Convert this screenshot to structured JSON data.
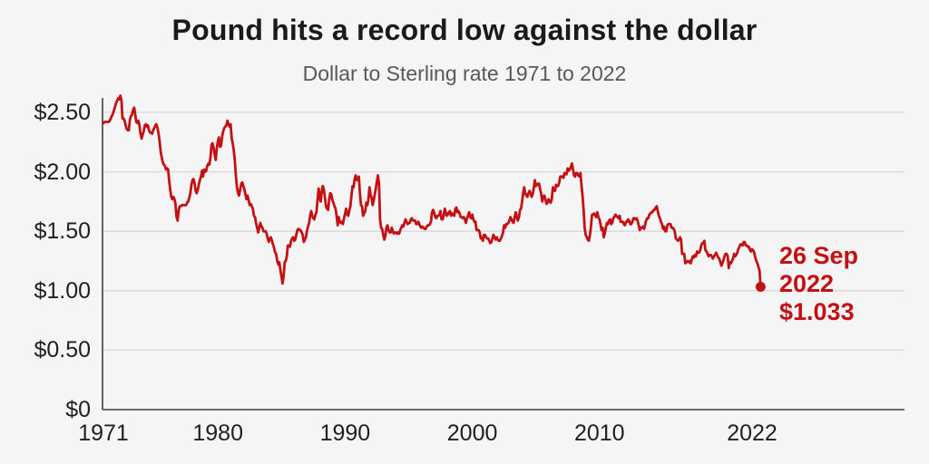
{
  "title": "Pound hits a record low against the dollar",
  "subtitle": "Dollar to Sterling rate 1971 to 2022",
  "annotation": {
    "line1": "26 Sep",
    "line2": "2022",
    "line3": "$1.033"
  },
  "colors": {
    "line": "#c31114",
    "annotation_text": "#c31114",
    "endpoint_dot": "#c31114",
    "grid": "#d9d9da",
    "axis": "#3f3f3f",
    "background": "#f5f5f6",
    "title_text": "#1a1a1a",
    "subtitle_text": "#585858",
    "tick_text": "#1f1f1f"
  },
  "chart_data": {
    "type": "line",
    "title": "Pound hits a record low against the dollar",
    "subtitle": "Dollar to Sterling rate 1971 to 2022",
    "xlabel": "",
    "ylabel": "",
    "grid": "horizontal",
    "legend": "none",
    "x_start_year": 1971,
    "points_per_year": 12,
    "x_tick_values": [
      1971,
      1980,
      1990,
      2000,
      2010,
      2022
    ],
    "x_tick_labels": [
      "1971",
      "1980",
      "1990",
      "2000",
      "2010",
      "2022"
    ],
    "y_tick_values": [
      2.5,
      2.0,
      1.5,
      1.0,
      0.5,
      0
    ],
    "y_tick_labels": [
      "$2.50",
      "$2.00",
      "$1.50",
      "$1.00",
      "$0.50",
      "$0"
    ],
    "ylim": [
      0,
      2.72
    ],
    "end_point": {
      "date": "26 Sep 2022",
      "value": 1.033
    },
    "series": [
      {
        "name": "Dollar to Sterling rate",
        "values": [
          2.41,
          2.42,
          2.42,
          2.42,
          2.42,
          2.42,
          2.43,
          2.45,
          2.47,
          2.49,
          2.52,
          2.55,
          2.58,
          2.6,
          2.62,
          2.61,
          2.64,
          2.6,
          2.45,
          2.45,
          2.43,
          2.39,
          2.36,
          2.35,
          2.35,
          2.44,
          2.47,
          2.48,
          2.52,
          2.54,
          2.48,
          2.42,
          2.41,
          2.43,
          2.39,
          2.32,
          2.28,
          2.31,
          2.34,
          2.39,
          2.4,
          2.38,
          2.39,
          2.35,
          2.33,
          2.33,
          2.32,
          2.35,
          2.37,
          2.39,
          2.4,
          2.37,
          2.32,
          2.26,
          2.17,
          2.12,
          2.08,
          2.06,
          2.05,
          2.02,
          2.03,
          2.02,
          1.93,
          1.85,
          1.79,
          1.77,
          1.79,
          1.77,
          1.73,
          1.62,
          1.59,
          1.68,
          1.71,
          1.71,
          1.72,
          1.72,
          1.72,
          1.72,
          1.72,
          1.74,
          1.75,
          1.78,
          1.82,
          1.89,
          1.93,
          1.94,
          1.9,
          1.84,
          1.82,
          1.85,
          1.89,
          1.93,
          1.96,
          2.01,
          1.96,
          2.02,
          2.0,
          2.01,
          2.05,
          2.07,
          2.06,
          2.12,
          2.23,
          2.24,
          2.2,
          2.14,
          2.1,
          2.2,
          2.26,
          2.29,
          2.21,
          2.22,
          2.3,
          2.34,
          2.37,
          2.38,
          2.39,
          2.43,
          2.4,
          2.38,
          2.4,
          2.28,
          2.24,
          2.18,
          2.09,
          1.97,
          1.87,
          1.82,
          1.8,
          1.85,
          1.9,
          1.91,
          1.88,
          1.85,
          1.81,
          1.77,
          1.8,
          1.76,
          1.72,
          1.73,
          1.71,
          1.69,
          1.63,
          1.62,
          1.57,
          1.53,
          1.49,
          1.53,
          1.57,
          1.54,
          1.53,
          1.5,
          1.5,
          1.5,
          1.48,
          1.44,
          1.41,
          1.44,
          1.45,
          1.42,
          1.39,
          1.36,
          1.32,
          1.31,
          1.25,
          1.22,
          1.24,
          1.17,
          1.12,
          1.06,
          1.12,
          1.24,
          1.25,
          1.29,
          1.38,
          1.38,
          1.37,
          1.42,
          1.44,
          1.45,
          1.42,
          1.43,
          1.47,
          1.51,
          1.52,
          1.51,
          1.51,
          1.49,
          1.47,
          1.41,
          1.43,
          1.45,
          1.5,
          1.54,
          1.57,
          1.63,
          1.67,
          1.63,
          1.61,
          1.6,
          1.64,
          1.66,
          1.76,
          1.86,
          1.79,
          1.75,
          1.84,
          1.88,
          1.85,
          1.78,
          1.71,
          1.69,
          1.68,
          1.77,
          1.82,
          1.81,
          1.76,
          1.74,
          1.71,
          1.69,
          1.63,
          1.55,
          1.62,
          1.58,
          1.57,
          1.58,
          1.56,
          1.61,
          1.65,
          1.69,
          1.64,
          1.63,
          1.68,
          1.71,
          1.8,
          1.88,
          1.87,
          1.94,
          1.97,
          1.93,
          1.93,
          1.96,
          1.82,
          1.72,
          1.71,
          1.63,
          1.65,
          1.67,
          1.74,
          1.72,
          1.77,
          1.87,
          1.81,
          1.78,
          1.72,
          1.76,
          1.81,
          1.86,
          1.92,
          1.97,
          1.9,
          1.6,
          1.53,
          1.52,
          1.47,
          1.43,
          1.46,
          1.53,
          1.55,
          1.51,
          1.49,
          1.49,
          1.53,
          1.5,
          1.48,
          1.49,
          1.49,
          1.48,
          1.49,
          1.48,
          1.51,
          1.53,
          1.55,
          1.54,
          1.57,
          1.6,
          1.58,
          1.56,
          1.57,
          1.57,
          1.6,
          1.61,
          1.59,
          1.59,
          1.59,
          1.56,
          1.56,
          1.58,
          1.56,
          1.54,
          1.53,
          1.54,
          1.53,
          1.52,
          1.52,
          1.54,
          1.55,
          1.55,
          1.56,
          1.58,
          1.66,
          1.68,
          1.66,
          1.62,
          1.61,
          1.63,
          1.63,
          1.64,
          1.67,
          1.6,
          1.6,
          1.63,
          1.69,
          1.66,
          1.63,
          1.64,
          1.66,
          1.67,
          1.63,
          1.65,
          1.64,
          1.63,
          1.69,
          1.7,
          1.66,
          1.67,
          1.65,
          1.62,
          1.62,
          1.61,
          1.62,
          1.6,
          1.57,
          1.61,
          1.63,
          1.66,
          1.62,
          1.61,
          1.64,
          1.6,
          1.58,
          1.58,
          1.51,
          1.51,
          1.51,
          1.49,
          1.44,
          1.45,
          1.42,
          1.47,
          1.47,
          1.45,
          1.44,
          1.44,
          1.42,
          1.4,
          1.41,
          1.44,
          1.47,
          1.45,
          1.43,
          1.45,
          1.43,
          1.42,
          1.42,
          1.44,
          1.46,
          1.49,
          1.55,
          1.53,
          1.56,
          1.56,
          1.57,
          1.59,
          1.62,
          1.6,
          1.58,
          1.57,
          1.62,
          1.66,
          1.62,
          1.59,
          1.62,
          1.68,
          1.69,
          1.75,
          1.82,
          1.87,
          1.82,
          1.8,
          1.79,
          1.82,
          1.84,
          1.82,
          1.79,
          1.81,
          1.86,
          1.93,
          1.88,
          1.89,
          1.9,
          1.9,
          1.85,
          1.82,
          1.75,
          1.79,
          1.8,
          1.77,
          1.73,
          1.74,
          1.77,
          1.75,
          1.74,
          1.77,
          1.87,
          1.85,
          1.84,
          1.89,
          1.88,
          1.88,
          1.91,
          1.96,
          1.96,
          1.96,
          1.95,
          1.99,
          1.98,
          1.98,
          2.03,
          2.01,
          2.02,
          2.04,
          2.07,
          2.02,
          1.97,
          1.96,
          1.99,
          1.99,
          1.97,
          1.96,
          1.99,
          1.89,
          1.8,
          1.68,
          1.53,
          1.47,
          1.45,
          1.43,
          1.42,
          1.47,
          1.54,
          1.64,
          1.64,
          1.65,
          1.63,
          1.62,
          1.66,
          1.62,
          1.6,
          1.56,
          1.51,
          1.53,
          1.45,
          1.48,
          1.53,
          1.57,
          1.56,
          1.59,
          1.6,
          1.56,
          1.57,
          1.61,
          1.62,
          1.64,
          1.63,
          1.62,
          1.61,
          1.63,
          1.58,
          1.58,
          1.58,
          1.56,
          1.55,
          1.58,
          1.58,
          1.6,
          1.59,
          1.56,
          1.56,
          1.58,
          1.61,
          1.61,
          1.6,
          1.61,
          1.59,
          1.55,
          1.51,
          1.53,
          1.53,
          1.54,
          1.52,
          1.55,
          1.59,
          1.61,
          1.61,
          1.64,
          1.65,
          1.66,
          1.66,
          1.68,
          1.68,
          1.7,
          1.71,
          1.67,
          1.63,
          1.61,
          1.58,
          1.56,
          1.52,
          1.54,
          1.5,
          1.5,
          1.55,
          1.56,
          1.56,
          1.56,
          1.53,
          1.53,
          1.52,
          1.5,
          1.44,
          1.43,
          1.42,
          1.43,
          1.45,
          1.43,
          1.31,
          1.31,
          1.31,
          1.23,
          1.24,
          1.25,
          1.24,
          1.25,
          1.23,
          1.26,
          1.29,
          1.28,
          1.3,
          1.29,
          1.33,
          1.32,
          1.32,
          1.34,
          1.38,
          1.4,
          1.4,
          1.42,
          1.34,
          1.33,
          1.31,
          1.29,
          1.3,
          1.3,
          1.29,
          1.27,
          1.29,
          1.3,
          1.32,
          1.3,
          1.28,
          1.27,
          1.24,
          1.21,
          1.23,
          1.26,
          1.29,
          1.31,
          1.31,
          1.29,
          1.19,
          1.24,
          1.23,
          1.25,
          1.27,
          1.31,
          1.29,
          1.3,
          1.32,
          1.35,
          1.37,
          1.39,
          1.39,
          1.38,
          1.41,
          1.41,
          1.38,
          1.38,
          1.37,
          1.37,
          1.34,
          1.33,
          1.35,
          1.34,
          1.32,
          1.28,
          1.25,
          1.23,
          1.2,
          1.17,
          1.033
        ]
      }
    ]
  }
}
